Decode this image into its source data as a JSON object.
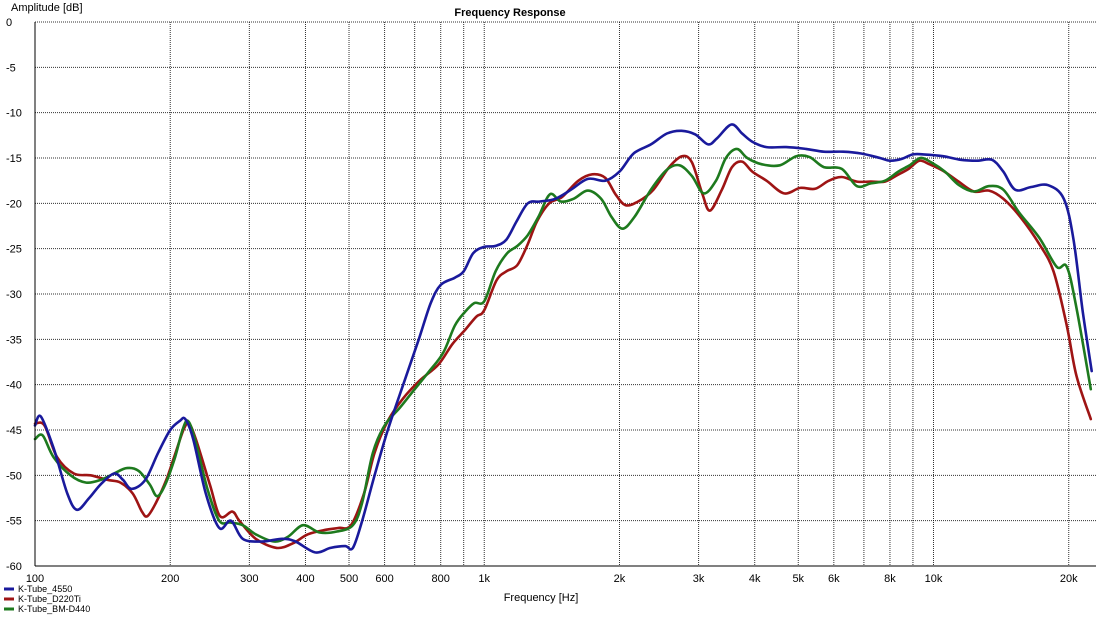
{
  "chart_data": {
    "type": "line",
    "title": "Frequency Response",
    "xlabel": "Frequency [Hz]",
    "ylabel": "Amplitude [dB]",
    "x_scale": "log",
    "xlim": [
      100,
      23000
    ],
    "ylim": [
      -60,
      0
    ],
    "grid": true,
    "legend_position": "bottom-left",
    "x_tick_labels": [
      {
        "value": 100,
        "label": "100"
      },
      {
        "value": 200,
        "label": "200"
      },
      {
        "value": 300,
        "label": "300"
      },
      {
        "value": 400,
        "label": "400"
      },
      {
        "value": 500,
        "label": "500"
      },
      {
        "value": 600,
        "label": "600"
      },
      {
        "value": 800,
        "label": "800"
      },
      {
        "value": 1000,
        "label": "1k"
      },
      {
        "value": 2000,
        "label": "2k"
      },
      {
        "value": 3000,
        "label": "3k"
      },
      {
        "value": 4000,
        "label": "4k"
      },
      {
        "value": 5000,
        "label": "5k"
      },
      {
        "value": 6000,
        "label": "6k"
      },
      {
        "value": 8000,
        "label": "8k"
      },
      {
        "value": 10000,
        "label": "10k"
      },
      {
        "value": 20000,
        "label": "20k"
      }
    ],
    "x_grid_values": [
      100,
      200,
      300,
      400,
      500,
      600,
      700,
      800,
      900,
      1000,
      2000,
      3000,
      4000,
      5000,
      6000,
      7000,
      8000,
      9000,
      10000,
      20000
    ],
    "y_ticks": [
      {
        "value": 0,
        "label": "0"
      },
      {
        "value": -5,
        "label": "-5"
      },
      {
        "value": -10,
        "label": "-10"
      },
      {
        "value": -15,
        "label": "-15"
      },
      {
        "value": -20,
        "label": "-20"
      },
      {
        "value": -25,
        "label": "-25"
      },
      {
        "value": -30,
        "label": "-30"
      },
      {
        "value": -35,
        "label": "-35"
      },
      {
        "value": -40,
        "label": "-40"
      },
      {
        "value": -45,
        "label": "-45"
      },
      {
        "value": -50,
        "label": "-50"
      },
      {
        "value": -55,
        "label": "-55"
      },
      {
        "value": -60,
        "label": "-60"
      }
    ],
    "series": [
      {
        "name": "K-Tube_4550",
        "color": "#1a1a9c",
        "points": [
          [
            100,
            -44.5
          ],
          [
            103,
            -43.5
          ],
          [
            110,
            -47
          ],
          [
            118,
            -52
          ],
          [
            124,
            -53.8
          ],
          [
            132,
            -52.5
          ],
          [
            140,
            -51
          ],
          [
            150,
            -49.8
          ],
          [
            157,
            -50.5
          ],
          [
            164,
            -51.5
          ],
          [
            176,
            -50.5
          ],
          [
            188,
            -47.5
          ],
          [
            200,
            -45
          ],
          [
            210,
            -44
          ],
          [
            216,
            -43.8
          ],
          [
            225,
            -46
          ],
          [
            240,
            -52
          ],
          [
            257,
            -55.8
          ],
          [
            273,
            -55
          ],
          [
            290,
            -57
          ],
          [
            320,
            -57.3
          ],
          [
            355,
            -57
          ],
          [
            380,
            -57.3
          ],
          [
            420,
            -58.5
          ],
          [
            455,
            -58
          ],
          [
            490,
            -57.8
          ],
          [
            510,
            -58
          ],
          [
            535,
            -55
          ],
          [
            570,
            -50
          ],
          [
            610,
            -45
          ],
          [
            660,
            -40
          ],
          [
            715,
            -35
          ],
          [
            760,
            -31
          ],
          [
            800,
            -29
          ],
          [
            860,
            -28.2
          ],
          [
            900,
            -27.5
          ],
          [
            945,
            -25.5
          ],
          [
            1000,
            -24.8
          ],
          [
            1060,
            -24.7
          ],
          [
            1120,
            -24
          ],
          [
            1180,
            -22
          ],
          [
            1250,
            -20
          ],
          [
            1330,
            -19.8
          ],
          [
            1440,
            -19.5
          ],
          [
            1560,
            -18.5
          ],
          [
            1700,
            -17.3
          ],
          [
            1860,
            -17.5
          ],
          [
            2000,
            -16.5
          ],
          [
            2150,
            -14.5
          ],
          [
            2350,
            -13.5
          ],
          [
            2550,
            -12.3
          ],
          [
            2750,
            -12
          ],
          [
            2950,
            -12.4
          ],
          [
            3150,
            -13.5
          ],
          [
            3300,
            -12.8
          ],
          [
            3550,
            -11.3
          ],
          [
            3750,
            -12.3
          ],
          [
            3950,
            -13.2
          ],
          [
            4250,
            -13.8
          ],
          [
            4700,
            -13.8
          ],
          [
            5200,
            -14
          ],
          [
            5700,
            -14.3
          ],
          [
            6300,
            -14.3
          ],
          [
            6900,
            -14.5
          ],
          [
            7600,
            -15
          ],
          [
            8000,
            -15.3
          ],
          [
            8500,
            -15.1
          ],
          [
            9000,
            -14.6
          ],
          [
            9500,
            -14.6
          ],
          [
            10500,
            -14.8
          ],
          [
            11500,
            -15.2
          ],
          [
            12500,
            -15.3
          ],
          [
            13500,
            -15.2
          ],
          [
            14300,
            -16.5
          ],
          [
            15200,
            -18.5
          ],
          [
            16500,
            -18.2
          ],
          [
            18000,
            -18
          ],
          [
            19500,
            -19.5
          ],
          [
            20500,
            -24
          ],
          [
            21500,
            -32
          ],
          [
            22500,
            -38.5
          ]
        ]
      },
      {
        "name": "K-Tube_D220Ti",
        "color": "#9e1414",
        "points": [
          [
            100,
            -44.3
          ],
          [
            105,
            -44.5
          ],
          [
            112,
            -48
          ],
          [
            122,
            -49.8
          ],
          [
            133,
            -50
          ],
          [
            145,
            -50.5
          ],
          [
            155,
            -50.8
          ],
          [
            165,
            -52
          ],
          [
            173,
            -54
          ],
          [
            178,
            -54.5
          ],
          [
            186,
            -53
          ],
          [
            196,
            -50.5
          ],
          [
            204,
            -48
          ],
          [
            214,
            -45
          ],
          [
            220,
            -44.3
          ],
          [
            228,
            -46
          ],
          [
            245,
            -51
          ],
          [
            258,
            -54.5
          ],
          [
            275,
            -54
          ],
          [
            285,
            -55
          ],
          [
            310,
            -57
          ],
          [
            345,
            -58
          ],
          [
            375,
            -57.5
          ],
          [
            405,
            -56.5
          ],
          [
            445,
            -56
          ],
          [
            475,
            -55.8
          ],
          [
            505,
            -55.5
          ],
          [
            540,
            -52
          ],
          [
            570,
            -47.5
          ],
          [
            610,
            -44
          ],
          [
            660,
            -41.5
          ],
          [
            720,
            -39.5
          ],
          [
            790,
            -37.8
          ],
          [
            850,
            -35.5
          ],
          [
            905,
            -34
          ],
          [
            960,
            -32.5
          ],
          [
            1000,
            -31.8
          ],
          [
            1065,
            -28.5
          ],
          [
            1120,
            -27.5
          ],
          [
            1185,
            -26.8
          ],
          [
            1250,
            -24.5
          ],
          [
            1310,
            -22
          ],
          [
            1395,
            -20
          ],
          [
            1490,
            -19.3
          ],
          [
            1620,
            -17.5
          ],
          [
            1740,
            -16.8
          ],
          [
            1860,
            -17.2
          ],
          [
            1960,
            -19
          ],
          [
            2060,
            -20.2
          ],
          [
            2200,
            -19.8
          ],
          [
            2380,
            -18.5
          ],
          [
            2580,
            -16
          ],
          [
            2760,
            -14.8
          ],
          [
            2900,
            -15.5
          ],
          [
            3060,
            -19
          ],
          [
            3180,
            -20.8
          ],
          [
            3380,
            -18.5
          ],
          [
            3560,
            -16
          ],
          [
            3750,
            -15.4
          ],
          [
            3950,
            -16.5
          ],
          [
            4250,
            -17.5
          ],
          [
            4650,
            -18.9
          ],
          [
            5050,
            -18.3
          ],
          [
            5450,
            -18.4
          ],
          [
            5850,
            -17.5
          ],
          [
            6250,
            -17.1
          ],
          [
            6750,
            -17.6
          ],
          [
            7250,
            -17.6
          ],
          [
            7800,
            -17.6
          ],
          [
            8300,
            -16.9
          ],
          [
            8800,
            -16.2
          ],
          [
            9300,
            -15.3
          ],
          [
            9800,
            -15.7
          ],
          [
            10500,
            -16.4
          ],
          [
            11300,
            -17.5
          ],
          [
            12300,
            -18.7
          ],
          [
            13300,
            -18.6
          ],
          [
            14300,
            -19.5
          ],
          [
            15600,
            -21.5
          ],
          [
            17200,
            -24.5
          ],
          [
            18500,
            -27.5
          ],
          [
            19800,
            -33.5
          ],
          [
            20800,
            -39
          ],
          [
            22400,
            -43.8
          ]
        ]
      },
      {
        "name": "K-Tube_BM-D440",
        "color": "#1e7a1e",
        "points": [
          [
            100,
            -46
          ],
          [
            104,
            -45.6
          ],
          [
            110,
            -48
          ],
          [
            120,
            -50
          ],
          [
            130,
            -50.8
          ],
          [
            140,
            -50.5
          ],
          [
            150,
            -49.8
          ],
          [
            160,
            -49.2
          ],
          [
            170,
            -49.5
          ],
          [
            180,
            -51
          ],
          [
            187,
            -52.3
          ],
          [
            195,
            -51
          ],
          [
            205,
            -48
          ],
          [
            213,
            -45
          ],
          [
            219,
            -44
          ],
          [
            227,
            -46
          ],
          [
            242,
            -51.5
          ],
          [
            257,
            -55
          ],
          [
            272,
            -55.2
          ],
          [
            290,
            -55.5
          ],
          [
            310,
            -56.5
          ],
          [
            340,
            -57.3
          ],
          [
            365,
            -56.8
          ],
          [
            395,
            -55.5
          ],
          [
            430,
            -56.3
          ],
          [
            470,
            -56.2
          ],
          [
            510,
            -55.5
          ],
          [
            535,
            -53
          ],
          [
            565,
            -47.5
          ],
          [
            600,
            -44.5
          ],
          [
            650,
            -42.5
          ],
          [
            700,
            -40.5
          ],
          [
            755,
            -38.5
          ],
          [
            810,
            -36.5
          ],
          [
            860,
            -33.5
          ],
          [
            905,
            -32
          ],
          [
            950,
            -31
          ],
          [
            1000,
            -30.8
          ],
          [
            1060,
            -27.5
          ],
          [
            1125,
            -25.5
          ],
          [
            1185,
            -24.7
          ],
          [
            1250,
            -23.5
          ],
          [
            1320,
            -21.5
          ],
          [
            1400,
            -19
          ],
          [
            1480,
            -19.8
          ],
          [
            1580,
            -19.5
          ],
          [
            1700,
            -18.6
          ],
          [
            1820,
            -19.5
          ],
          [
            1920,
            -21.5
          ],
          [
            2030,
            -22.8
          ],
          [
            2160,
            -21.5
          ],
          [
            2350,
            -18.5
          ],
          [
            2550,
            -16.3
          ],
          [
            2720,
            -15.8
          ],
          [
            2900,
            -17
          ],
          [
            3080,
            -18.9
          ],
          [
            3280,
            -17.5
          ],
          [
            3450,
            -15
          ],
          [
            3650,
            -14
          ],
          [
            3850,
            -15
          ],
          [
            4150,
            -15.7
          ],
          [
            4550,
            -15.8
          ],
          [
            4950,
            -14.8
          ],
          [
            5300,
            -14.9
          ],
          [
            5700,
            -16
          ],
          [
            6250,
            -16.2
          ],
          [
            6750,
            -18.1
          ],
          [
            7250,
            -17.8
          ],
          [
            7800,
            -17.5
          ],
          [
            8350,
            -16.5
          ],
          [
            8850,
            -15.8
          ],
          [
            9350,
            -15
          ],
          [
            9900,
            -15.5
          ],
          [
            10600,
            -16.5
          ],
          [
            11400,
            -18
          ],
          [
            12300,
            -18.7
          ],
          [
            13300,
            -18.1
          ],
          [
            14300,
            -18.5
          ],
          [
            15500,
            -21
          ],
          [
            17200,
            -23.8
          ],
          [
            18800,
            -27
          ],
          [
            19800,
            -27
          ],
          [
            20800,
            -31.5
          ],
          [
            22400,
            -40.5
          ]
        ]
      }
    ]
  }
}
